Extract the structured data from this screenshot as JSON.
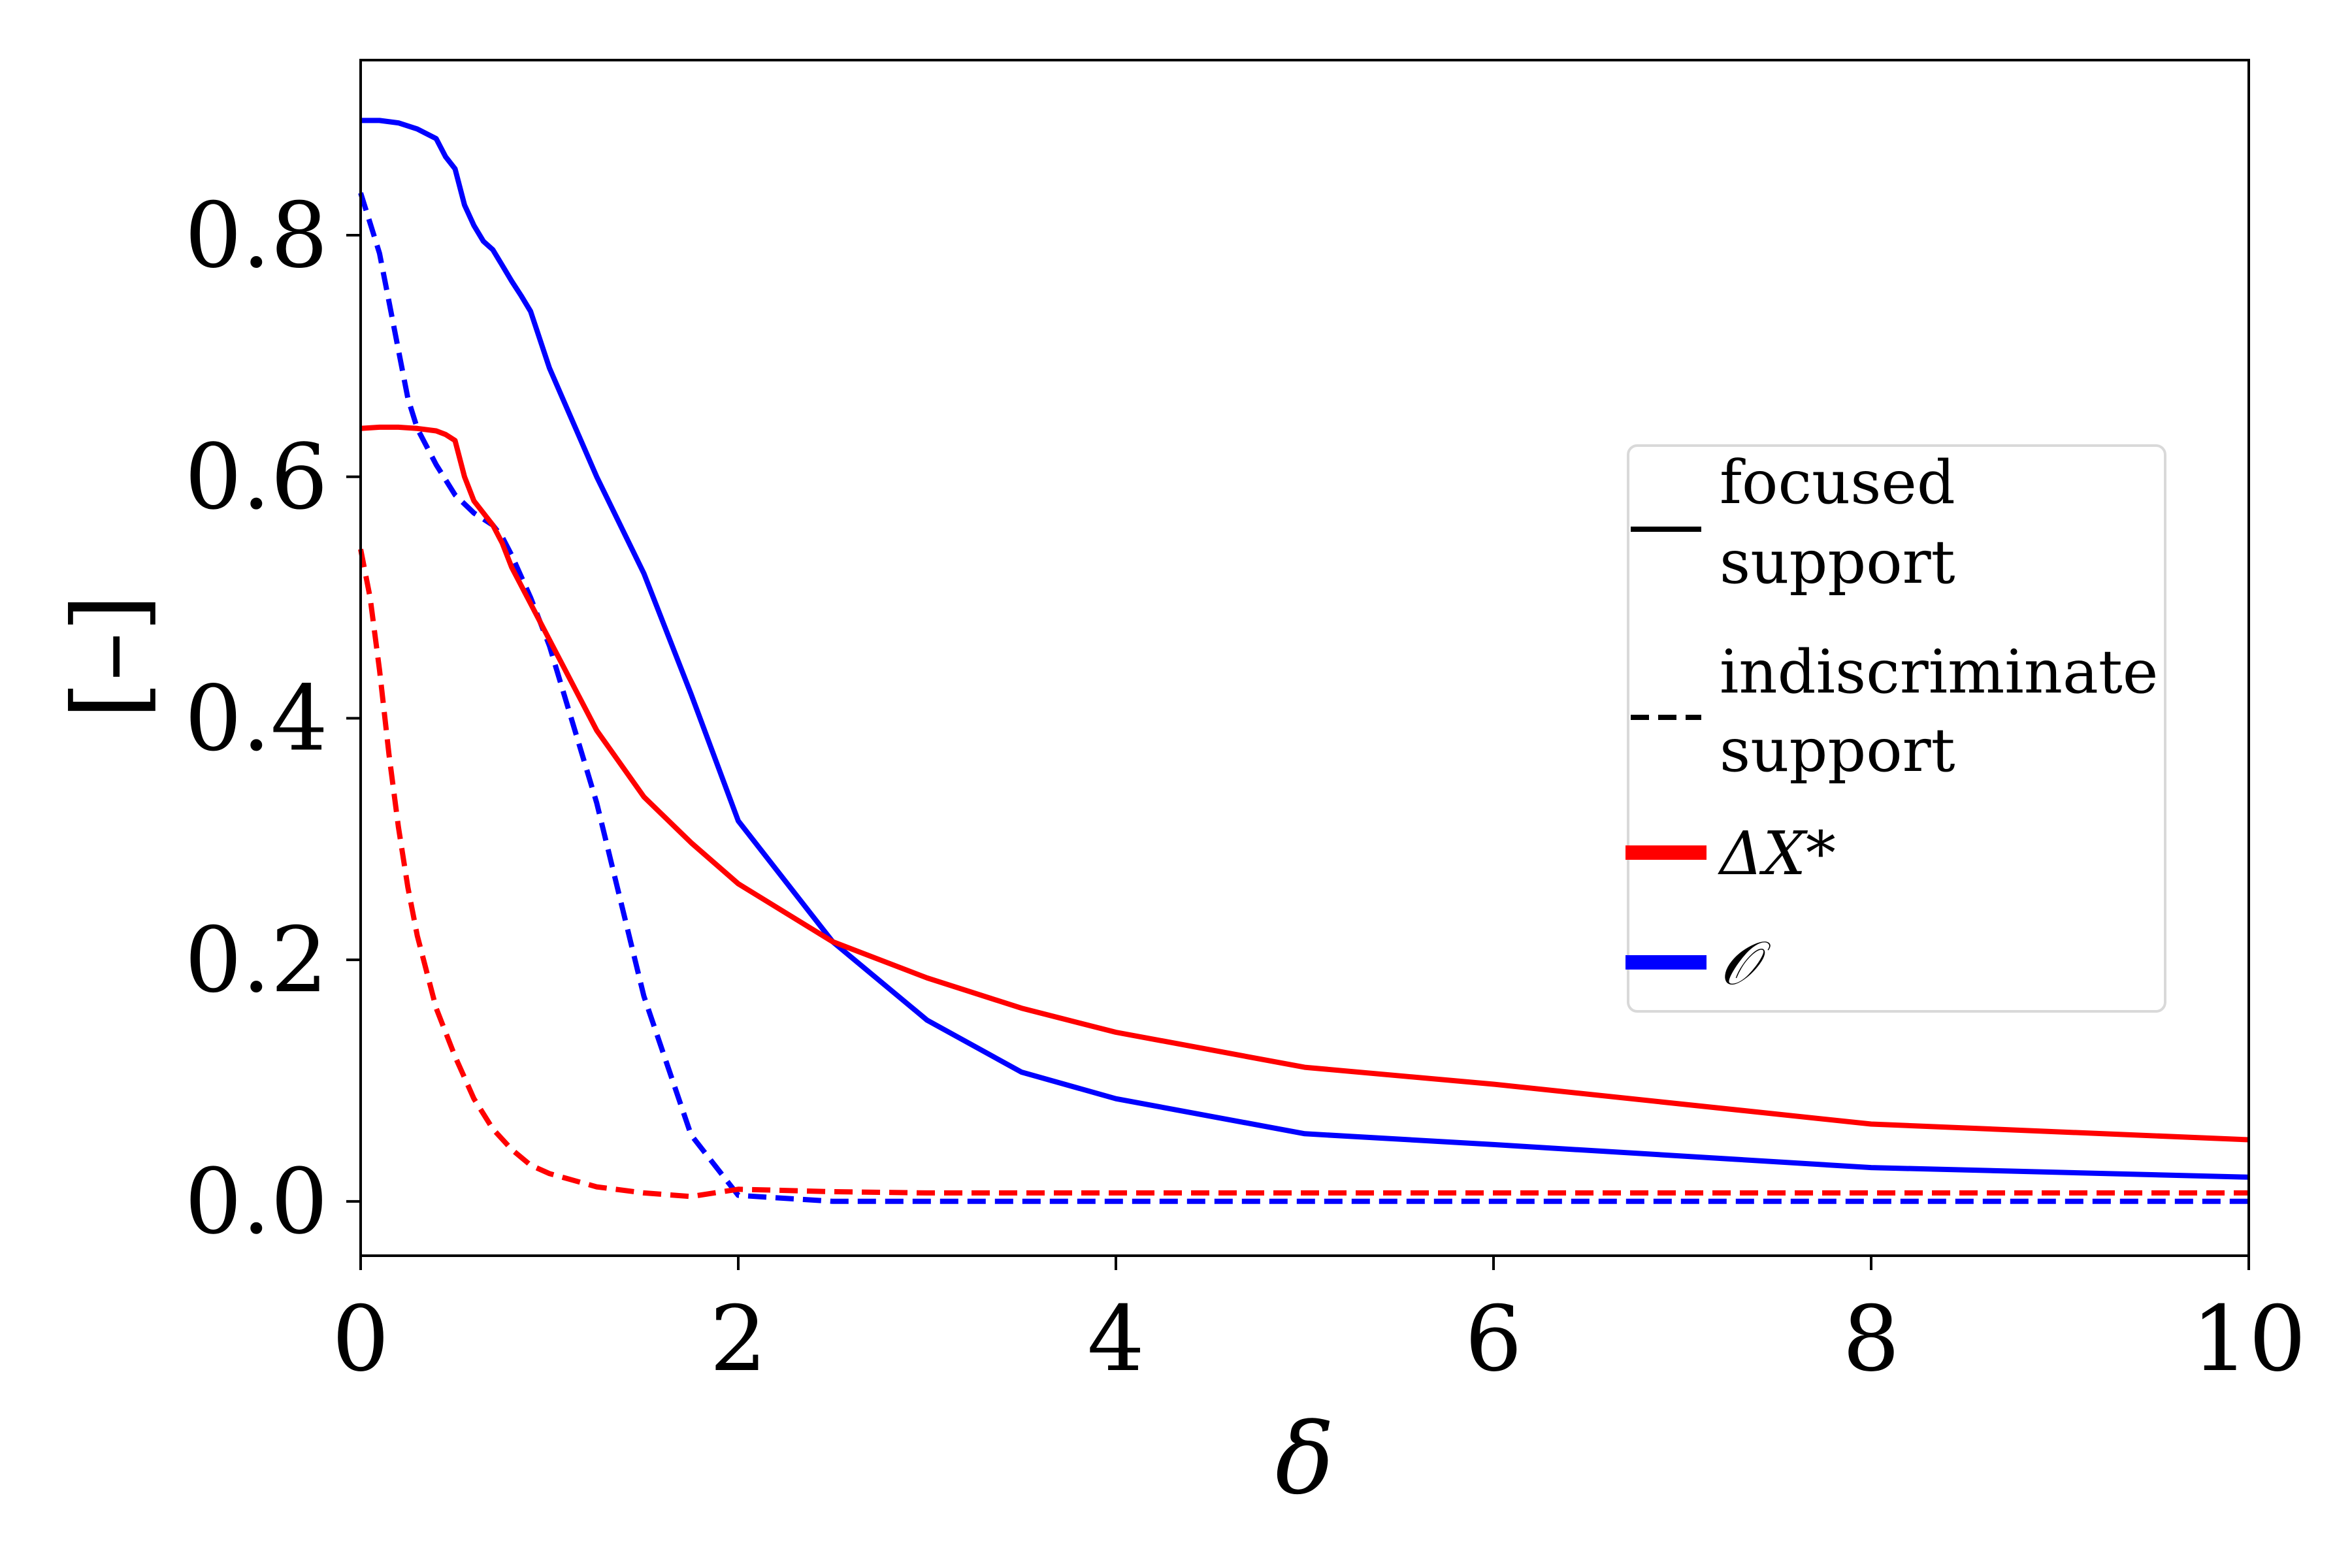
{
  "chart_data": {
    "type": "line",
    "xlabel": "δ",
    "ylabel": "[–]",
    "xlim": [
      0,
      10
    ],
    "ylim": [
      -0.045,
      0.945
    ],
    "xticks": [
      0,
      2,
      4,
      6,
      8,
      10
    ],
    "xtick_labels": [
      "0",
      "2",
      "4",
      "6",
      "8",
      "10"
    ],
    "yticks": [
      0.0,
      0.2,
      0.4,
      0.6,
      0.8
    ],
    "ytick_labels": [
      "0.0",
      "0.2",
      "0.4",
      "0.6",
      "0.8"
    ],
    "grid": false,
    "legend_position": "center-right",
    "legend": {
      "line_styles": [
        {
          "style": "solid",
          "label_lines": [
            "focused",
            "support"
          ]
        },
        {
          "style": "dashed",
          "label_lines": [
            "indiscriminate",
            "support"
          ]
        }
      ],
      "colors": [
        {
          "color": "#ff0000",
          "label": "ΔX*"
        },
        {
          "color": "#0000ff",
          "label": "𝒪"
        }
      ]
    },
    "series": [
      {
        "color": "#0000ff",
        "style": "solid",
        "x": [
          0,
          0.1,
          0.2,
          0.3,
          0.4,
          0.45,
          0.5,
          0.55,
          0.6,
          0.65,
          0.7,
          0.75,
          0.8,
          0.85,
          0.9,
          1.0,
          1.25,
          1.5,
          1.75,
          2.0,
          2.5,
          3.0,
          3.5,
          4.0,
          5.0,
          6.0,
          8.0,
          10.0
        ],
        "y": [
          0.895,
          0.895,
          0.893,
          0.888,
          0.88,
          0.865,
          0.855,
          0.825,
          0.808,
          0.795,
          0.788,
          0.775,
          0.762,
          0.75,
          0.737,
          0.69,
          0.6,
          0.52,
          0.42,
          0.315,
          0.215,
          0.15,
          0.107,
          0.085,
          0.056,
          0.047,
          0.028,
          0.02
        ]
      },
      {
        "color": "#0000ff",
        "style": "dashed",
        "x": [
          0,
          0.05,
          0.1,
          0.15,
          0.2,
          0.25,
          0.3,
          0.4,
          0.5,
          0.6,
          0.7,
          0.75,
          0.8,
          0.9,
          1.0,
          1.25,
          1.5,
          1.75,
          2.0,
          2.5,
          3.0,
          4.0,
          6.0,
          8.0,
          10.0
        ],
        "y": [
          0.835,
          0.81,
          0.785,
          0.745,
          0.705,
          0.665,
          0.64,
          0.61,
          0.585,
          0.57,
          0.56,
          0.55,
          0.535,
          0.5,
          0.46,
          0.33,
          0.17,
          0.055,
          0.005,
          0.0,
          0.0,
          0.0,
          0.0,
          0.0,
          0.0
        ]
      },
      {
        "color": "#ff0000",
        "style": "solid",
        "x": [
          0,
          0.1,
          0.2,
          0.3,
          0.4,
          0.45,
          0.5,
          0.55,
          0.6,
          0.7,
          0.75,
          0.8,
          0.9,
          1.0,
          1.25,
          1.5,
          1.75,
          2.0,
          2.5,
          3.0,
          3.5,
          4.0,
          5.0,
          6.0,
          8.0,
          10.0
        ],
        "y": [
          0.64,
          0.641,
          0.641,
          0.64,
          0.638,
          0.635,
          0.63,
          0.6,
          0.58,
          0.56,
          0.545,
          0.525,
          0.495,
          0.465,
          0.39,
          0.335,
          0.297,
          0.263,
          0.215,
          0.185,
          0.16,
          0.14,
          0.111,
          0.097,
          0.064,
          0.051
        ]
      },
      {
        "color": "#ff0000",
        "style": "dashed",
        "x": [
          0,
          0.05,
          0.1,
          0.15,
          0.2,
          0.25,
          0.3,
          0.4,
          0.5,
          0.6,
          0.7,
          0.8,
          0.9,
          1.0,
          1.25,
          1.5,
          1.75,
          2.0,
          2.5,
          3.0,
          4.0,
          6.0,
          8.0,
          10.0
        ],
        "y": [
          0.54,
          0.5,
          0.44,
          0.37,
          0.31,
          0.26,
          0.22,
          0.16,
          0.12,
          0.085,
          0.06,
          0.043,
          0.03,
          0.023,
          0.012,
          0.007,
          0.004,
          0.01,
          0.008,
          0.007,
          0.007,
          0.007,
          0.007,
          0.007
        ]
      }
    ]
  }
}
